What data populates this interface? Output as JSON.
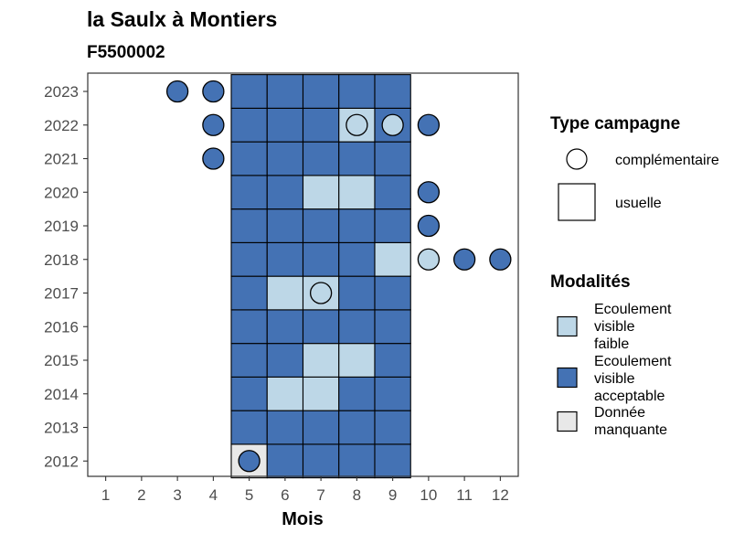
{
  "chart_data": {
    "type": "heatmap",
    "title": "la Saulx à Montiers",
    "subtitle": "F5500002",
    "xlabel": "Mois",
    "ylabel": "",
    "x_ticks": [
      "1",
      "2",
      "3",
      "4",
      "5",
      "6",
      "7",
      "8",
      "9",
      "10",
      "11",
      "12"
    ],
    "y_ticks": [
      "2012",
      "2013",
      "2014",
      "2015",
      "2016",
      "2017",
      "2018",
      "2019",
      "2020",
      "2021",
      "2022",
      "2023"
    ],
    "xlim": [
      0.5,
      12.5
    ],
    "legend_placement": "right",
    "colors": {
      "Ecoulement visible faible": "#bdd7e7",
      "Ecoulement visible acceptable": "#4472b4",
      "Donnée manquante": "#e8e8e8"
    },
    "legends": {
      "type_campagne": {
        "title": "Type campagne",
        "items": [
          {
            "label": "complémentaire",
            "shape": "circle"
          },
          {
            "label": "usuelle",
            "shape": "square"
          }
        ]
      },
      "modalites": {
        "title": "Modalités",
        "items": [
          {
            "key": "Ecoulement visible faible",
            "lines": [
              "Ecoulement",
              "visible",
              "faible"
            ]
          },
          {
            "key": "Ecoulement visible acceptable",
            "lines": [
              "Ecoulement",
              "visible",
              "acceptable"
            ]
          },
          {
            "key": "Donnée manquante",
            "lines": [
              "Donnée",
              "manquante"
            ]
          }
        ]
      }
    },
    "squares": [
      {
        "year": 2012,
        "month": 5,
        "value": "Donnée manquante"
      },
      {
        "year": 2012,
        "month": 6,
        "value": "Ecoulement visible acceptable"
      },
      {
        "year": 2012,
        "month": 7,
        "value": "Ecoulement visible acceptable"
      },
      {
        "year": 2012,
        "month": 8,
        "value": "Ecoulement visible acceptable"
      },
      {
        "year": 2012,
        "month": 9,
        "value": "Ecoulement visible acceptable"
      },
      {
        "year": 2013,
        "month": 5,
        "value": "Ecoulement visible acceptable"
      },
      {
        "year": 2013,
        "month": 6,
        "value": "Ecoulement visible acceptable"
      },
      {
        "year": 2013,
        "month": 7,
        "value": "Ecoulement visible acceptable"
      },
      {
        "year": 2013,
        "month": 8,
        "value": "Ecoulement visible acceptable"
      },
      {
        "year": 2013,
        "month": 9,
        "value": "Ecoulement visible acceptable"
      },
      {
        "year": 2014,
        "month": 5,
        "value": "Ecoulement visible acceptable"
      },
      {
        "year": 2014,
        "month": 6,
        "value": "Ecoulement visible faible"
      },
      {
        "year": 2014,
        "month": 7,
        "value": "Ecoulement visible faible"
      },
      {
        "year": 2014,
        "month": 8,
        "value": "Ecoulement visible acceptable"
      },
      {
        "year": 2014,
        "month": 9,
        "value": "Ecoulement visible acceptable"
      },
      {
        "year": 2015,
        "month": 5,
        "value": "Ecoulement visible acceptable"
      },
      {
        "year": 2015,
        "month": 6,
        "value": "Ecoulement visible acceptable"
      },
      {
        "year": 2015,
        "month": 7,
        "value": "Ecoulement visible faible"
      },
      {
        "year": 2015,
        "month": 8,
        "value": "Ecoulement visible faible"
      },
      {
        "year": 2015,
        "month": 9,
        "value": "Ecoulement visible acceptable"
      },
      {
        "year": 2016,
        "month": 5,
        "value": "Ecoulement visible acceptable"
      },
      {
        "year": 2016,
        "month": 6,
        "value": "Ecoulement visible acceptable"
      },
      {
        "year": 2016,
        "month": 7,
        "value": "Ecoulement visible acceptable"
      },
      {
        "year": 2016,
        "month": 8,
        "value": "Ecoulement visible acceptable"
      },
      {
        "year": 2016,
        "month": 9,
        "value": "Ecoulement visible acceptable"
      },
      {
        "year": 2017,
        "month": 5,
        "value": "Ecoulement visible acceptable"
      },
      {
        "year": 2017,
        "month": 6,
        "value": "Ecoulement visible faible"
      },
      {
        "year": 2017,
        "month": 7,
        "value": "Ecoulement visible faible"
      },
      {
        "year": 2017,
        "month": 8,
        "value": "Ecoulement visible acceptable"
      },
      {
        "year": 2017,
        "month": 9,
        "value": "Ecoulement visible acceptable"
      },
      {
        "year": 2018,
        "month": 5,
        "value": "Ecoulement visible acceptable"
      },
      {
        "year": 2018,
        "month": 6,
        "value": "Ecoulement visible acceptable"
      },
      {
        "year": 2018,
        "month": 7,
        "value": "Ecoulement visible acceptable"
      },
      {
        "year": 2018,
        "month": 8,
        "value": "Ecoulement visible acceptable"
      },
      {
        "year": 2018,
        "month": 9,
        "value": "Ecoulement visible faible"
      },
      {
        "year": 2019,
        "month": 5,
        "value": "Ecoulement visible acceptable"
      },
      {
        "year": 2019,
        "month": 6,
        "value": "Ecoulement visible acceptable"
      },
      {
        "year": 2019,
        "month": 7,
        "value": "Ecoulement visible acceptable"
      },
      {
        "year": 2019,
        "month": 8,
        "value": "Ecoulement visible acceptable"
      },
      {
        "year": 2019,
        "month": 9,
        "value": "Ecoulement visible acceptable"
      },
      {
        "year": 2020,
        "month": 5,
        "value": "Ecoulement visible acceptable"
      },
      {
        "year": 2020,
        "month": 6,
        "value": "Ecoulement visible acceptable"
      },
      {
        "year": 2020,
        "month": 7,
        "value": "Ecoulement visible faible"
      },
      {
        "year": 2020,
        "month": 8,
        "value": "Ecoulement visible faible"
      },
      {
        "year": 2020,
        "month": 9,
        "value": "Ecoulement visible acceptable"
      },
      {
        "year": 2021,
        "month": 5,
        "value": "Ecoulement visible acceptable"
      },
      {
        "year": 2021,
        "month": 6,
        "value": "Ecoulement visible acceptable"
      },
      {
        "year": 2021,
        "month": 7,
        "value": "Ecoulement visible acceptable"
      },
      {
        "year": 2021,
        "month": 8,
        "value": "Ecoulement visible acceptable"
      },
      {
        "year": 2021,
        "month": 9,
        "value": "Ecoulement visible acceptable"
      },
      {
        "year": 2022,
        "month": 5,
        "value": "Ecoulement visible acceptable"
      },
      {
        "year": 2022,
        "month": 6,
        "value": "Ecoulement visible acceptable"
      },
      {
        "year": 2022,
        "month": 7,
        "value": "Ecoulement visible acceptable"
      },
      {
        "year": 2022,
        "month": 8,
        "value": "Ecoulement visible faible"
      },
      {
        "year": 2022,
        "month": 9,
        "value": "Ecoulement visible acceptable"
      },
      {
        "year": 2023,
        "month": 5,
        "value": "Ecoulement visible acceptable"
      },
      {
        "year": 2023,
        "month": 6,
        "value": "Ecoulement visible acceptable"
      },
      {
        "year": 2023,
        "month": 7,
        "value": "Ecoulement visible acceptable"
      },
      {
        "year": 2023,
        "month": 8,
        "value": "Ecoulement visible acceptable"
      },
      {
        "year": 2023,
        "month": 9,
        "value": "Ecoulement visible acceptable"
      }
    ],
    "circles": [
      {
        "year": 2012,
        "month": 5,
        "value": "Ecoulement visible acceptable"
      },
      {
        "year": 2017,
        "month": 7,
        "value": "Ecoulement visible faible"
      },
      {
        "year": 2018,
        "month": 10,
        "value": "Ecoulement visible faible"
      },
      {
        "year": 2018,
        "month": 11,
        "value": "Ecoulement visible acceptable"
      },
      {
        "year": 2018,
        "month": 12,
        "value": "Ecoulement visible acceptable"
      },
      {
        "year": 2019,
        "month": 10,
        "value": "Ecoulement visible acceptable"
      },
      {
        "year": 2020,
        "month": 10,
        "value": "Ecoulement visible acceptable"
      },
      {
        "year": 2021,
        "month": 4,
        "value": "Ecoulement visible acceptable"
      },
      {
        "year": 2022,
        "month": 4,
        "value": "Ecoulement visible acceptable"
      },
      {
        "year": 2022,
        "month": 8,
        "value": "Ecoulement visible faible"
      },
      {
        "year": 2022,
        "month": 9,
        "value": "Ecoulement visible faible"
      },
      {
        "year": 2022,
        "month": 10,
        "value": "Ecoulement visible acceptable"
      },
      {
        "year": 2023,
        "month": 3,
        "value": "Ecoulement visible acceptable"
      },
      {
        "year": 2023,
        "month": 4,
        "value": "Ecoulement visible acceptable"
      }
    ]
  }
}
